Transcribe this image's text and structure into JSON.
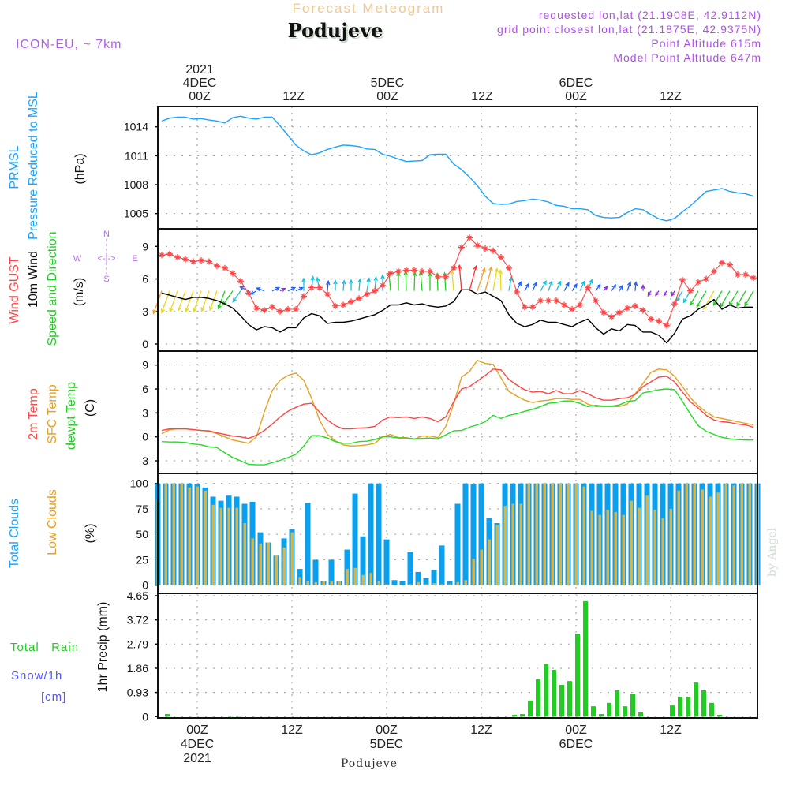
{
  "header": {
    "title": "Forecast Meteogram",
    "location": "Podujeve",
    "model": "ICON-EU, ~ 7km",
    "requested": "requested lon,lat (21.1908E, 42.9112N)",
    "grid_point": "grid point closest lon,lat (21.1875E, 42.9375N)",
    "point_altitude": "Point Altitude 615m",
    "model_altitude": "Model Point Altitude 647m",
    "bottom_location": "Podujeve",
    "watermark": "by Angel"
  },
  "time_axis": {
    "year": "2021",
    "labels": [
      {
        "hour": 0,
        "time": "00Z",
        "day": "4DEC",
        "year": "2021"
      },
      {
        "hour": 12,
        "time": "12Z"
      },
      {
        "hour": 24,
        "time": "00Z",
        "day": "5DEC"
      },
      {
        "hour": 36,
        "time": "12Z"
      },
      {
        "hour": 48,
        "time": "00Z",
        "day": "6DEC"
      },
      {
        "hour": 60,
        "time": "12Z"
      }
    ]
  },
  "labels": {
    "prmsl": "PRMSL",
    "pressure_reduced": "Pressure Reduced to MSL",
    "hpa": "(hPa)",
    "wind_gust": "Wind GUST",
    "wind_10m": "10m Wind",
    "speed_dir": "Speed and Direction",
    "ms": "(m/s)",
    "compass_n": "N",
    "compass_s": "S",
    "compass_w": "W",
    "compass_e": "E",
    "compass_arrows": "<-|->",
    "temp_2m": "2m Temp",
    "temp_sfc": "SFC Temp",
    "temp_dewpt": "dewpt Temp",
    "deg_c": "(C)",
    "total_clouds": "Total Clouds",
    "low_clouds": "Low Clouds",
    "pct": "(%)",
    "total_rain": "Total   Rain",
    "snow": "Snow/1h",
    "cm": "[cm]",
    "precip_axis": "1hr Precip (mm)"
  },
  "colors": {
    "pressure": "#1aa3ff",
    "gust": "#ff4545",
    "wind": "#000000",
    "t2m": "#ff4545",
    "tsfc": "#e8a020",
    "dewpt": "#22dd22",
    "total_clouds": "#0aa0f0",
    "low_clouds": "#e8b030",
    "precip": "#22cc22",
    "purple": "#b050e8",
    "title": "#f0c890"
  },
  "chart_data": {
    "type": "meteogram",
    "x_unit": "hours from 4DEC 00Z 2021",
    "line_start_hour": -4.5,
    "bar_start_hour": -5,
    "step_hours": 1,
    "panels": {
      "pressure": {
        "type": "line",
        "ylabel": "PRMSL Pressure Reduced to MSL (hPa)",
        "ylim": [
          1003.3,
          1016.0
        ],
        "yticks": [
          "1014",
          "1011",
          "1008",
          "1005"
        ],
        "values": [
          1014.6,
          1014.9,
          1015.0,
          1015.0,
          1014.8,
          1014.85,
          1014.7,
          1014.6,
          1014.4,
          1014.95,
          1015.1,
          1014.9,
          1014.8,
          1015.0,
          1015.0,
          1014.1,
          1013.1,
          1012.1,
          1011.5,
          1011.1,
          1011.3,
          1011.65,
          1011.9,
          1012.1,
          1012.05,
          1011.95,
          1011.7,
          1011.65,
          1011.15,
          1010.95,
          1010.65,
          1010.4,
          1010.45,
          1010.5,
          1011.1,
          1011.15,
          1011.15,
          1010.15,
          1009.55,
          1008.8,
          1007.9,
          1006.8,
          1006.05,
          1005.95,
          1006.0,
          1006.25,
          1006.35,
          1006.5,
          1006.4,
          1006.2,
          1005.85,
          1005.75,
          1005.5,
          1005.5,
          1005.4,
          1004.8,
          1004.6,
          1004.55,
          1004.6,
          1005.1,
          1005.5,
          1005.4,
          1004.9,
          1004.45,
          1004.25,
          1004.5,
          1005.2,
          1005.8,
          1006.55,
          1007.3,
          1007.45,
          1007.6,
          1007.3,
          1007.15,
          1007.05,
          1006.8
        ]
      },
      "wind": {
        "type": "line",
        "ylabel": "(m/s)",
        "ylim": [
          -0.7,
          10.6
        ],
        "yticks": [
          "9",
          "6",
          "3",
          "0"
        ],
        "gust": [
          8.2,
          8.3,
          8.0,
          7.8,
          7.6,
          7.7,
          7.6,
          7.2,
          7.0,
          6.5,
          5.8,
          4.7,
          3.3,
          3.1,
          3.4,
          3.0,
          3.2,
          3.2,
          4.4,
          5.2,
          5.2,
          4.6,
          3.5,
          3.6,
          3.9,
          4.2,
          4.6,
          4.9,
          5.4,
          6.5,
          6.7,
          6.8,
          6.8,
          6.7,
          6.7,
          6.2,
          6.2,
          7.0,
          8.9,
          9.8,
          9.1,
          8.8,
          8.6,
          8.0,
          7.0,
          4.8,
          3.4,
          3.4,
          4.0,
          4.0,
          4.0,
          3.6,
          3.2,
          3.6,
          5.2,
          4.0,
          2.9,
          2.5,
          2.9,
          3.3,
          3.5,
          3.1,
          2.3,
          2.1,
          1.7,
          3.7,
          5.9,
          4.9,
          5.7,
          6.0,
          6.7,
          7.5,
          7.3,
          6.4,
          6.4,
          6.1
        ],
        "speed_10m": [
          4.7,
          4.5,
          4.3,
          4.1,
          4.3,
          4.3,
          4.2,
          4.0,
          3.7,
          3.3,
          2.6,
          1.8,
          1.3,
          1.6,
          1.5,
          1.1,
          1.5,
          1.5,
          2.4,
          2.8,
          2.6,
          1.9,
          2.0,
          2.0,
          2.1,
          2.3,
          2.5,
          2.7,
          3.1,
          3.6,
          3.6,
          3.8,
          3.6,
          3.7,
          3.5,
          3.4,
          3.5,
          3.9,
          5.0,
          5.0,
          4.6,
          4.8,
          4.4,
          4.0,
          2.7,
          1.9,
          1.6,
          1.8,
          2.2,
          2.0,
          2.0,
          1.8,
          1.6,
          2.0,
          2.3,
          1.5,
          0.9,
          1.4,
          1.2,
          1.8,
          1.7,
          1.1,
          1.1,
          0.8,
          0.1,
          1.0,
          2.3,
          2.6,
          3.2,
          3.6,
          4.1,
          3.2,
          3.6,
          3.3,
          3.4,
          3.4
        ],
        "direction_from_deg": [
          20,
          20,
          20,
          20,
          20,
          20,
          20,
          20,
          20,
          35,
          35,
          115,
          60,
          110,
          245,
          245,
          245,
          245,
          180,
          185,
          170,
          185,
          180,
          185,
          180,
          185,
          190,
          185,
          180,
          175,
          180,
          178,
          182,
          175,
          180,
          178,
          176,
          175,
          175,
          195,
          198,
          195,
          190,
          178,
          190,
          205,
          210,
          205,
          210,
          200,
          205,
          210,
          215,
          205,
          200,
          215,
          220,
          215,
          210,
          200,
          185,
          180,
          30,
          35,
          30,
          30,
          30,
          30,
          30,
          30,
          30,
          30,
          30,
          30,
          30,
          30
        ],
        "arrow_anchor_value": 4.9
      },
      "temperature": {
        "type": "line",
        "ylabel": "(C)",
        "ylim": [
          -4.7,
          10.3
        ],
        "yticks": [
          "9",
          "6",
          "3",
          "0",
          "-3"
        ],
        "t2m": [
          0.8,
          1.0,
          1.0,
          1.0,
          0.9,
          0.8,
          0.75,
          0.5,
          0.3,
          0.1,
          0.0,
          -0.2,
          0.2,
          0.8,
          1.6,
          2.5,
          3.2,
          3.7,
          4.1,
          4.2,
          3.1,
          2.1,
          1.4,
          1.0,
          1.0,
          1.1,
          1.15,
          1.3,
          2.1,
          2.5,
          2.4,
          2.5,
          2.3,
          2.5,
          2.3,
          1.9,
          2.5,
          4.4,
          6.0,
          6.3,
          7.0,
          7.7,
          8.5,
          8.4,
          7.2,
          6.5,
          5.9,
          5.6,
          5.7,
          5.4,
          5.8,
          5.4,
          5.4,
          5.8,
          5.4,
          4.9,
          4.6,
          4.6,
          4.8,
          4.9,
          5.3,
          6.3,
          6.9,
          7.5,
          7.6,
          6.9,
          5.6,
          4.4,
          3.6,
          2.7,
          2.1,
          1.9,
          1.8,
          1.6,
          1.5,
          1.2
        ],
        "tsfc": [
          0.4,
          0.9,
          1.0,
          1.0,
          0.9,
          0.8,
          0.7,
          0.4,
          0.0,
          -0.4,
          -0.6,
          -0.8,
          0.0,
          3.1,
          5.8,
          7.1,
          7.7,
          8.0,
          7.1,
          4.8,
          2.1,
          0.3,
          -0.5,
          -1.0,
          -1.15,
          -1.1,
          -1.0,
          -0.8,
          0.0,
          0.3,
          -0.1,
          -0.1,
          -0.3,
          0.1,
          0.1,
          -0.1,
          1.3,
          4.1,
          7.5,
          8.2,
          9.6,
          9.2,
          9.1,
          7.4,
          5.7,
          5.1,
          4.6,
          4.3,
          4.5,
          4.6,
          4.8,
          4.8,
          4.7,
          4.7,
          4.1,
          3.8,
          3.8,
          3.8,
          3.8,
          4.1,
          5.4,
          6.7,
          8.1,
          8.5,
          8.4,
          7.6,
          6.3,
          4.9,
          3.9,
          3.1,
          2.5,
          2.3,
          2.1,
          1.9,
          1.7,
          1.5
        ],
        "dewpt": [
          -0.6,
          -0.65,
          -0.65,
          -0.7,
          -0.9,
          -1.0,
          -1.25,
          -1.35,
          -2.0,
          -2.6,
          -3.0,
          -3.45,
          -3.5,
          -3.5,
          -3.25,
          -2.95,
          -2.6,
          -2.2,
          -1.15,
          0.15,
          0.15,
          -0.15,
          -0.6,
          -0.8,
          -0.8,
          -0.6,
          -0.55,
          -0.35,
          0.0,
          0.0,
          -0.15,
          -0.15,
          -0.25,
          -0.2,
          -0.15,
          -0.25,
          0.25,
          0.75,
          0.8,
          1.2,
          1.5,
          1.9,
          2.7,
          2.3,
          2.7,
          2.9,
          3.2,
          3.45,
          3.8,
          4.2,
          4.3,
          4.5,
          4.5,
          4.2,
          3.8,
          3.95,
          3.85,
          3.85,
          4.0,
          4.45,
          4.55,
          5.5,
          5.7,
          5.9,
          6.0,
          5.9,
          4.45,
          2.85,
          1.4,
          0.7,
          0.3,
          -0.05,
          -0.25,
          -0.35,
          -0.4,
          -0.4
        ]
      },
      "clouds": {
        "type": "bar",
        "ylabel": "(%)",
        "ylim": [
          0,
          100
        ],
        "yticks": [
          "100",
          "75",
          "50",
          "25",
          "0"
        ],
        "total": [
          100,
          100,
          100,
          100,
          100,
          99,
          96,
          87,
          83,
          88,
          87,
          80,
          82,
          52,
          42,
          29,
          46,
          55,
          16,
          81,
          25,
          4,
          25,
          4,
          35,
          90,
          48,
          100,
          100,
          45,
          5,
          4,
          33,
          13,
          7,
          15,
          39,
          4,
          80,
          100,
          99,
          100,
          66,
          61,
          100,
          100,
          100,
          100,
          100,
          100,
          100,
          100,
          100,
          100,
          100,
          100,
          100,
          100,
          100,
          100,
          100,
          100,
          100,
          100,
          100,
          100,
          100,
          100,
          100,
          100,
          100,
          100,
          100,
          100,
          100,
          100,
          100
        ],
        "low": [
          84,
          100,
          100,
          100,
          96,
          97,
          93,
          79,
          76,
          76,
          76,
          61,
          46,
          41,
          42,
          29,
          37,
          52,
          8,
          4,
          3,
          4,
          4,
          4,
          16,
          17,
          10,
          12,
          4,
          1,
          0,
          0,
          1,
          3,
          1,
          2,
          1,
          1,
          3,
          5,
          26,
          35,
          45,
          59,
          78,
          80,
          80,
          100,
          100,
          100,
          100,
          100,
          100,
          100,
          97,
          73,
          69,
          74,
          72,
          69,
          83,
          76,
          88,
          74,
          66,
          75,
          93,
          100,
          100,
          94,
          87,
          91,
          100,
          98,
          100,
          100,
          100
        ]
      },
      "precip": {
        "type": "bar",
        "ylabel": "1hr Precip (mm)",
        "ylim": [
          0,
          4.65
        ],
        "yticks": [
          "4.65",
          "3.72",
          "2.79",
          "1.86",
          "0.93",
          "0"
        ],
        "rain": [
          0,
          0.1,
          0,
          0,
          0,
          0,
          0,
          0,
          0,
          0.04,
          0.04,
          0,
          0,
          0,
          0,
          0,
          0,
          0,
          0,
          0,
          0,
          0,
          0,
          0,
          0,
          0,
          0,
          0,
          0,
          0,
          0,
          0,
          0,
          0,
          0,
          0,
          0,
          0,
          0,
          0,
          0,
          0,
          0,
          0,
          0,
          0.07,
          0.1,
          0.62,
          1.44,
          2.01,
          1.8,
          1.22,
          1.37,
          3.19,
          4.44,
          0.4,
          0.1,
          0.53,
          1.01,
          0.4,
          0.86,
          0.16,
          0,
          0,
          0,
          0.43,
          0.77,
          0.77,
          1.31,
          1.01,
          0.53,
          0.07,
          0,
          0,
          0,
          0,
          0
        ]
      }
    }
  }
}
